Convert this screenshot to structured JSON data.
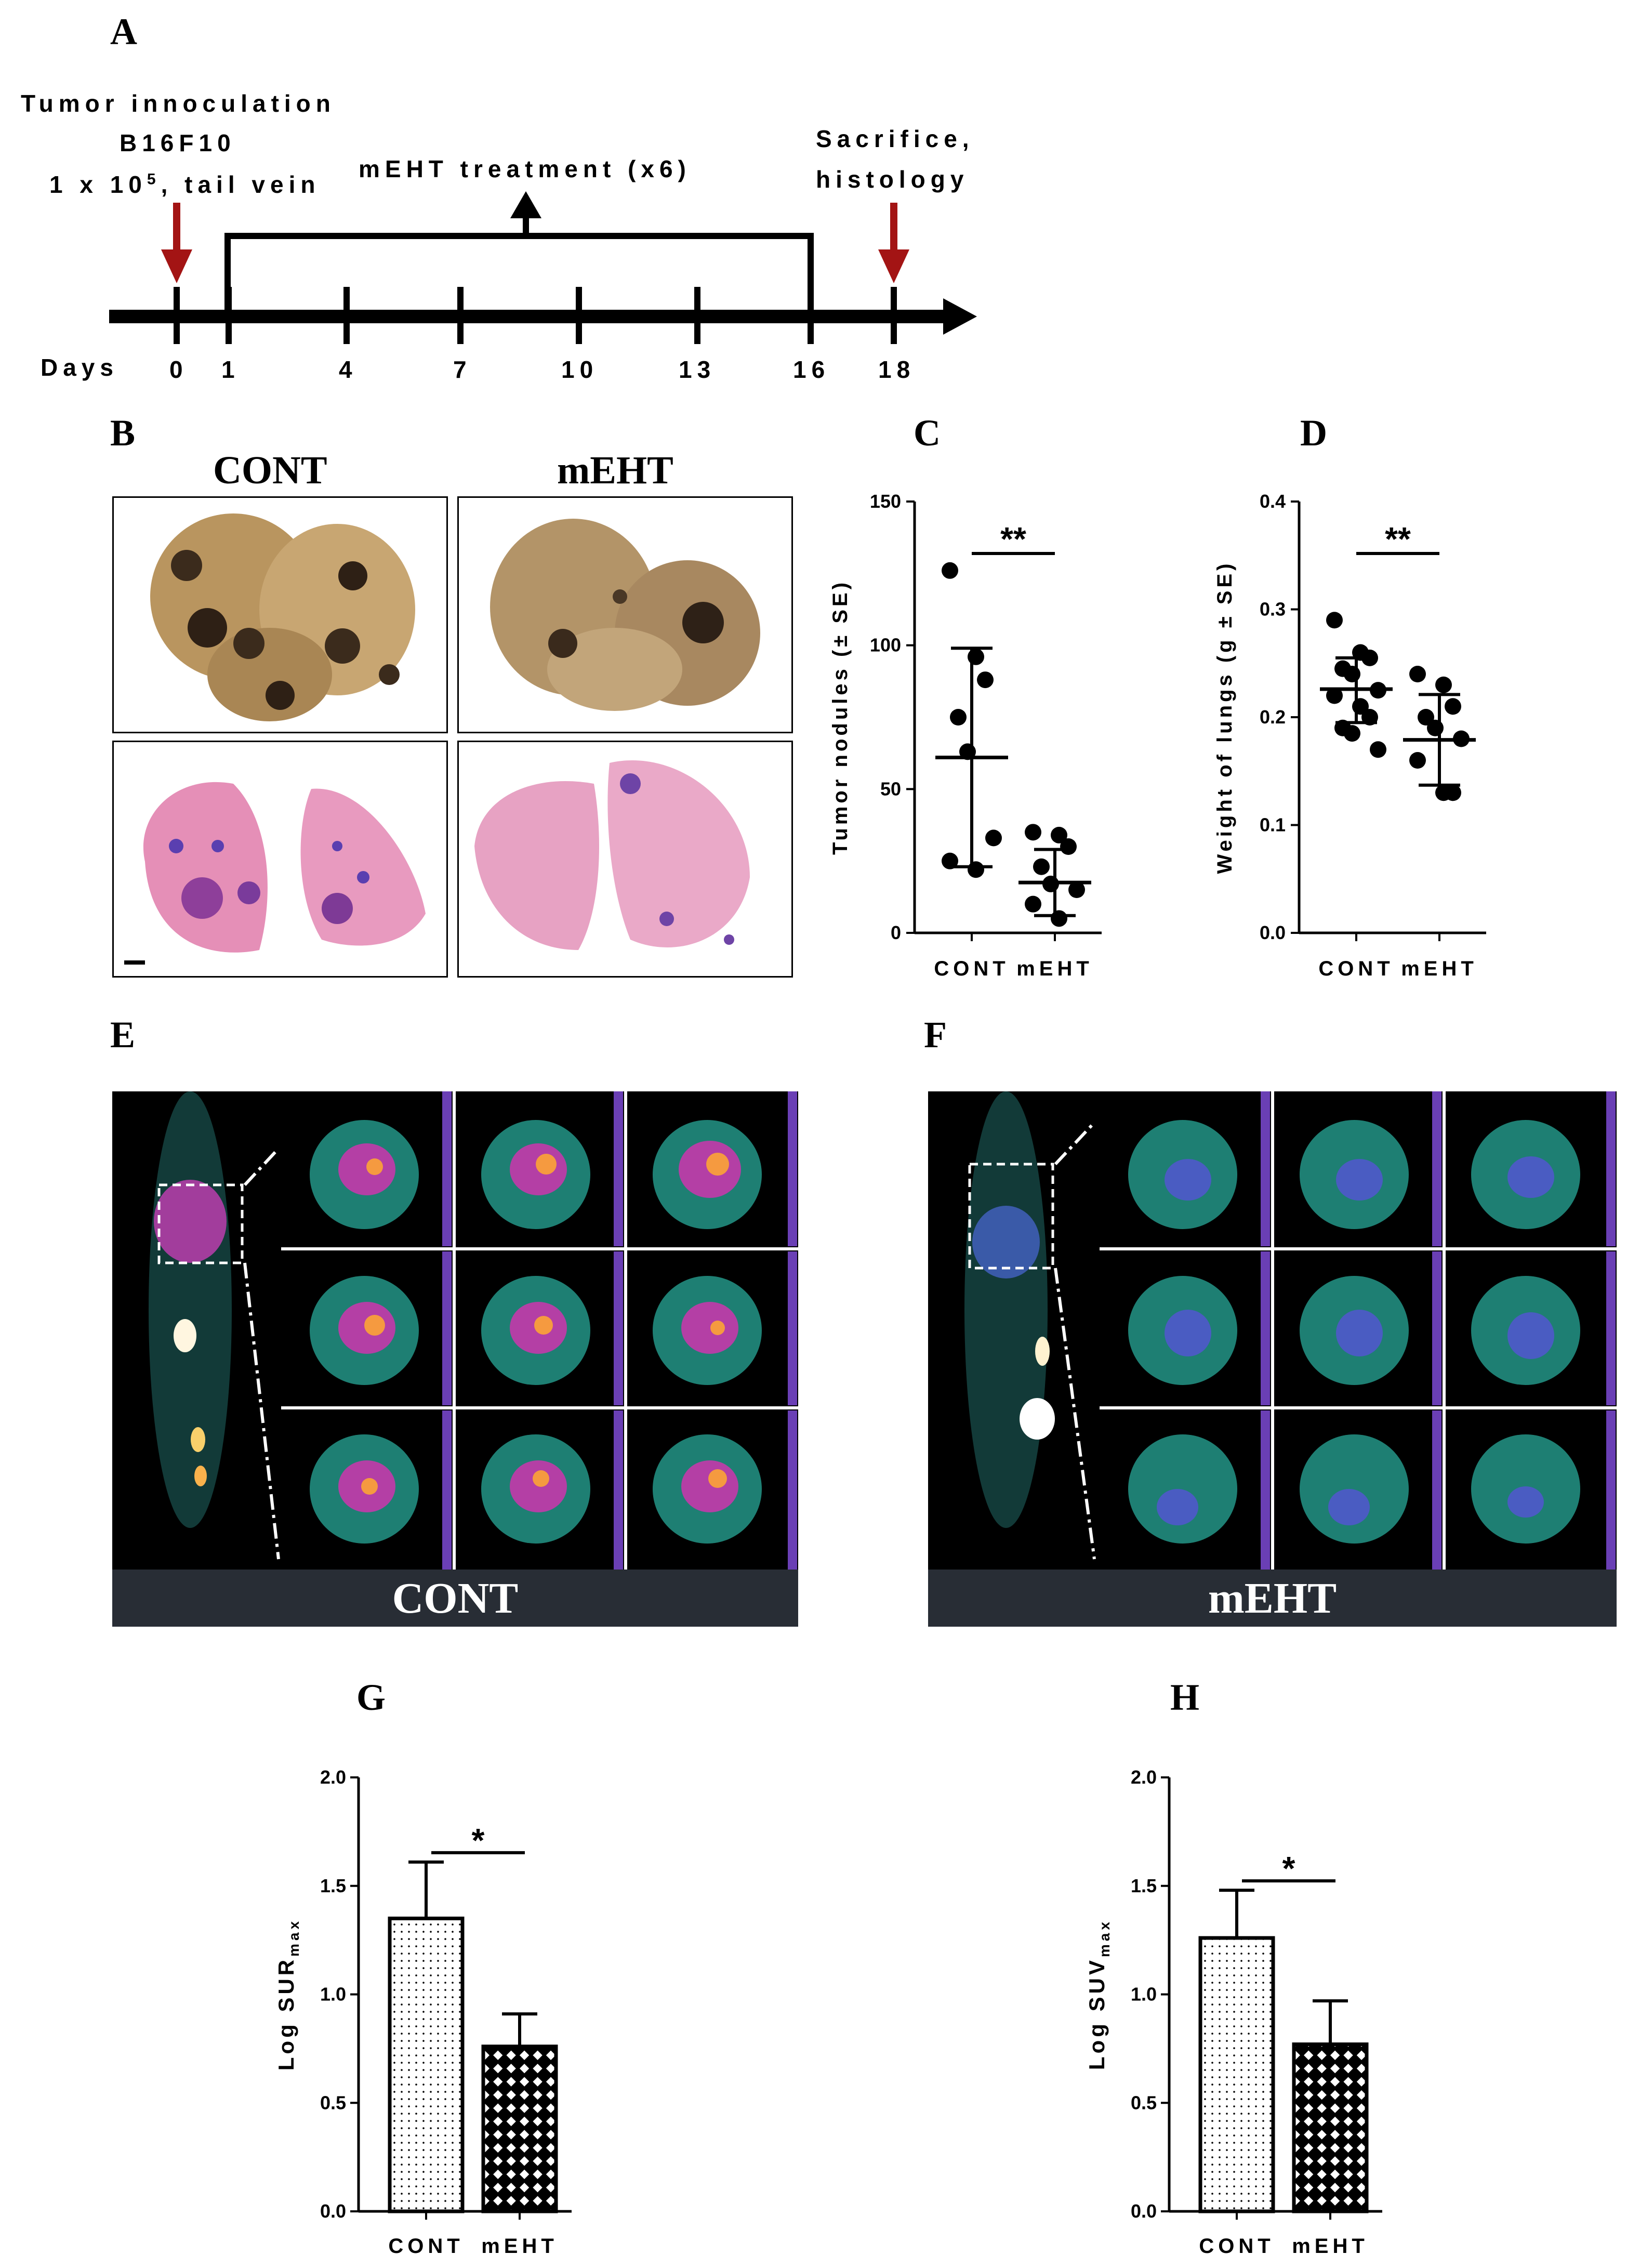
{
  "panel_labels": {
    "A": "A",
    "B": "B",
    "C": "C",
    "D": "D",
    "E": "E",
    "F": "F",
    "G": "G",
    "H": "H"
  },
  "timeline": {
    "inoculation_lines": [
      "Tumor innoculation",
      "B16F10",
      "1 x 10",
      "5",
      ", tail vein"
    ],
    "treatment_label": "mEHT treatment (x6)",
    "sacrifice_lines": [
      "Sacrifice,",
      "histology"
    ],
    "days_label": "Days",
    "days": [
      "0",
      "1",
      "4",
      "7",
      "10",
      "13",
      "16",
      "18"
    ],
    "colors": {
      "arrow": "#a31414",
      "line": "#000000"
    }
  },
  "panel_B": {
    "cont_label": "CONT",
    "meht_label": "mEHT"
  },
  "panel_E": {
    "bar_label": "CONT"
  },
  "panel_F": {
    "bar_label": "mEHT"
  },
  "chart_data": [
    {
      "id": "C",
      "type": "scatter",
      "ylabel": "Tumor nodules (± SE)",
      "categories": [
        "CONT",
        "mEHT"
      ],
      "ylim": [
        0,
        150
      ],
      "yticks": [
        "0",
        "50",
        "100",
        "150"
      ],
      "significance": "**",
      "series": [
        {
          "values": [
            126,
            96,
            88,
            75,
            63,
            33,
            25,
            22
          ],
          "mean": 61,
          "err_low": 23,
          "err_high": 99
        },
        {
          "values": [
            35,
            34,
            30,
            23,
            17,
            15,
            10,
            5
          ],
          "mean": 17.5,
          "err_low": 6,
          "err_high": 29
        }
      ]
    },
    {
      "id": "D",
      "type": "scatter",
      "ylabel": "Weight of lungs (g ± SE)",
      "categories": [
        "CONT",
        "mEHT"
      ],
      "ylim": [
        0,
        0.4
      ],
      "yticks": [
        "0.0",
        "0.1",
        "0.2",
        "0.3",
        "0.4"
      ],
      "significance": "**",
      "series": [
        {
          "values": [
            0.29,
            0.26,
            0.255,
            0.245,
            0.24,
            0.225,
            0.22,
            0.21,
            0.2,
            0.19,
            0.185,
            0.17
          ],
          "mean": 0.226,
          "err_low": 0.195,
          "err_high": 0.255
        },
        {
          "values": [
            0.24,
            0.23,
            0.21,
            0.2,
            0.19,
            0.18,
            0.16,
            0.13,
            0.13
          ],
          "mean": 0.179,
          "err_low": 0.137,
          "err_high": 0.221
        }
      ]
    },
    {
      "id": "G",
      "type": "bar",
      "ylabel_main": "Log SUR",
      "ylabel_sub": "max",
      "categories": [
        "CONT",
        "mEHT"
      ],
      "ylim": [
        0,
        2.0
      ],
      "yticks": [
        "0.0",
        "0.5",
        "1.0",
        "1.5",
        "2.0"
      ],
      "significance": "*",
      "values": [
        1.35,
        0.76
      ],
      "errors": [
        1.61,
        0.91
      ]
    },
    {
      "id": "H",
      "type": "bar",
      "ylabel_main": "Log SUV",
      "ylabel_sub": "max",
      "categories": [
        "CONT",
        "mEHT"
      ],
      "ylim": [
        0,
        2.0
      ],
      "yticks": [
        "0.0",
        "0.5",
        "1.0",
        "1.5",
        "2.0"
      ],
      "significance": "*",
      "values": [
        1.26,
        0.77
      ],
      "errors": [
        1.48,
        0.97
      ]
    }
  ]
}
